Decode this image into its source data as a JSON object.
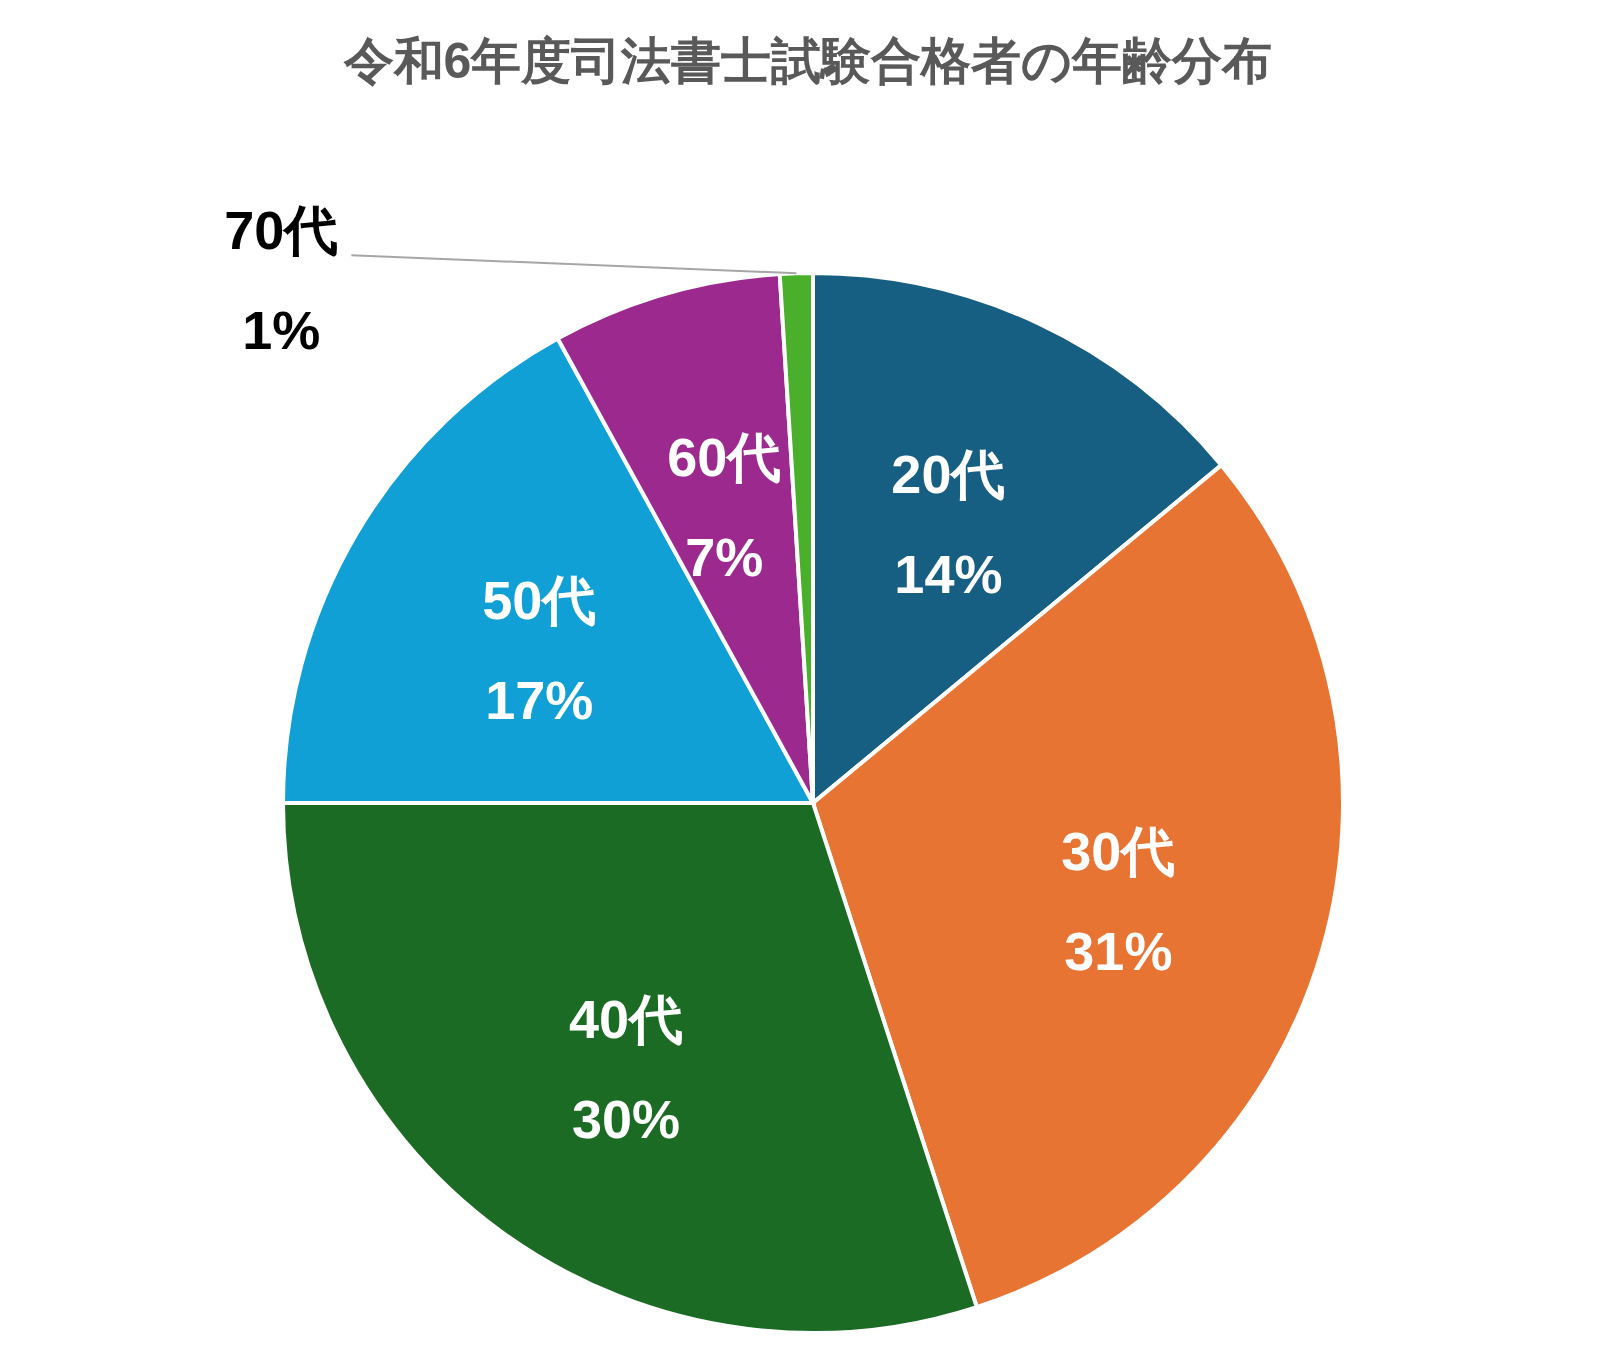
{
  "chart_data": {
    "type": "pie",
    "title": "令和6年度司法書士試験合格者の年齢分布",
    "categories": [
      "20代",
      "30代",
      "40代",
      "50代",
      "60代",
      "70代"
    ],
    "values": [
      14,
      31,
      30,
      17,
      7,
      1
    ],
    "value_labels": [
      "14%",
      "31%",
      "30%",
      "17%",
      "7%",
      "1%"
    ],
    "colors": [
      "#175f82",
      "#e87433",
      "#1b6b25",
      "#11a0d6",
      "#9c2a8e",
      "#4aaf2a"
    ]
  }
}
